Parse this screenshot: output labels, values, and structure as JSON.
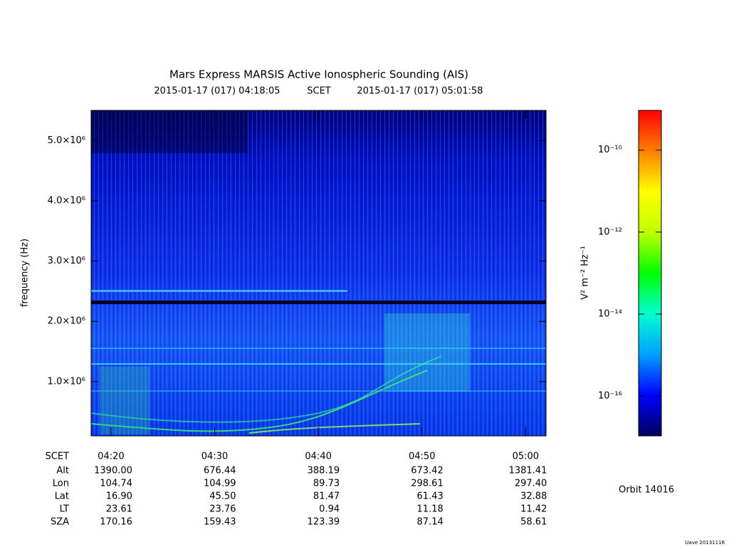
{
  "chart_data": {
    "type": "spectrogram",
    "title": "Mars Express MARSIS Active Ionospheric Sounding (AIS)",
    "start_time": "2015-01-17 (017) 04:18:05",
    "time_label": "SCET",
    "end_time": "2015-01-17 (017) 05:01:58",
    "ylabel": "frequency (Hz)",
    "ylim": [
      100000,
      5500000
    ],
    "yticks": [
      {
        "value": 1000000,
        "label": "1.0×10⁶"
      },
      {
        "value": 2000000,
        "label": "2.0×10⁶"
      },
      {
        "value": 3000000,
        "label": "3.0×10⁶"
      },
      {
        "value": 4000000,
        "label": "4.0×10⁶"
      },
      {
        "value": 5000000,
        "label": "5.0×10⁶"
      }
    ],
    "xlim": [
      258.083,
      301.967
    ],
    "xticks": [
      {
        "value": 260,
        "label": "04:20"
      },
      {
        "value": 270,
        "label": "04:30"
      },
      {
        "value": 280,
        "label": "04:40"
      },
      {
        "value": 290,
        "label": "04:50"
      },
      {
        "value": 300,
        "label": "05:00"
      }
    ],
    "colorbar": {
      "label": "V² m⁻² Hz⁻¹",
      "scale": "log",
      "zlim": [
        1.07e-17,
        9.3e-10
      ],
      "zticks": [
        {
          "value": 1e-10,
          "label": "10⁻¹⁰"
        },
        {
          "value": 1e-12,
          "label": "10⁻¹²"
        },
        {
          "value": 1e-14,
          "label": "10⁻¹⁴"
        },
        {
          "value": 1e-16,
          "label": "10⁻¹⁶"
        }
      ],
      "colors": [
        "#000060",
        "#0000ff",
        "#00a0ff",
        "#00ffd0",
        "#00ff00",
        "#c0ff00",
        "#ffff00",
        "#ff8000",
        "#ff0000"
      ]
    },
    "ephemeris": {
      "time_row": "SCET",
      "rows": [
        {
          "name": "Alt",
          "values": [
            "1390.00",
            "676.44",
            "388.19",
            "673.42",
            "1381.41"
          ]
        },
        {
          "name": "Lon",
          "values": [
            "104.74",
            "104.99",
            "89.73",
            "298.61",
            "297.40"
          ]
        },
        {
          "name": "Lat",
          "values": [
            "16.90",
            "45.50",
            "81.47",
            "61.43",
            "32.88"
          ]
        },
        {
          "name": "LT",
          "values": [
            "23.61",
            "23.76",
            "0.94",
            "11.18",
            "11.42"
          ]
        },
        {
          "name": "SZA",
          "values": [
            "170.16",
            "159.43",
            "123.39",
            "87.14",
            "58.61"
          ]
        }
      ]
    },
    "orbit": "Orbit 14016",
    "credit": "Uave 20131116"
  }
}
